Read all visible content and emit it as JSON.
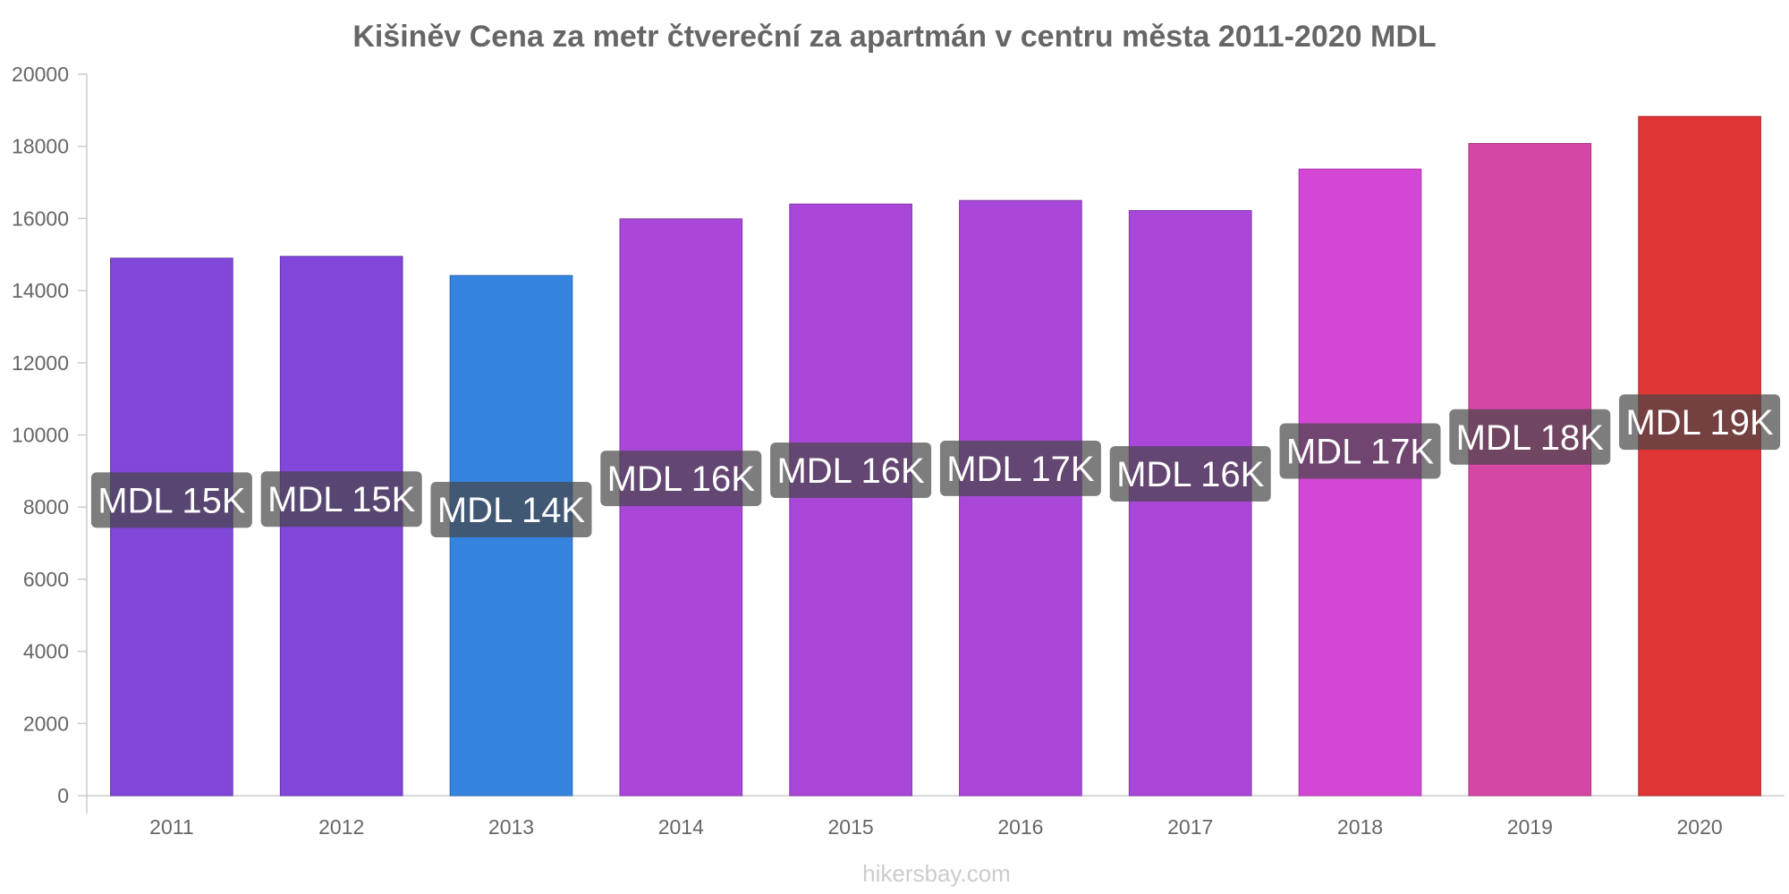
{
  "chart_data": {
    "type": "bar",
    "title": "Kišiněv Cena za metr čtvereční za apartmán v centru města 2011-2020 MDL",
    "xlabel": "",
    "ylabel": "",
    "categories": [
      "2011",
      "2012",
      "2013",
      "2014",
      "2015",
      "2016",
      "2017",
      "2018",
      "2019",
      "2020"
    ],
    "values": [
      14900,
      14950,
      14420,
      15990,
      16400,
      16500,
      16220,
      17370,
      18080,
      18830
    ],
    "data_labels": [
      "MDL 15K",
      "MDL 15K",
      "MDL 14K",
      "MDL 16K",
      "MDL 16K",
      "MDL 17K",
      "MDL 16K",
      "MDL 17K",
      "MDL 18K",
      "MDL 19K"
    ],
    "colors": [
      "#8047d8",
      "#8047d8",
      "#3584e0",
      "#a847d8",
      "#a847d8",
      "#a847d8",
      "#a847d8",
      "#d447d4",
      "#d447a4",
      "#e03535"
    ],
    "ylim": [
      0,
      20000
    ],
    "yticks": [
      "0",
      "2000",
      "4000",
      "6000",
      "8000",
      "10000",
      "12000",
      "14000",
      "16000",
      "18000",
      "20000"
    ],
    "grid": false,
    "legend": "none"
  },
  "watermark": "hikersbay.com"
}
